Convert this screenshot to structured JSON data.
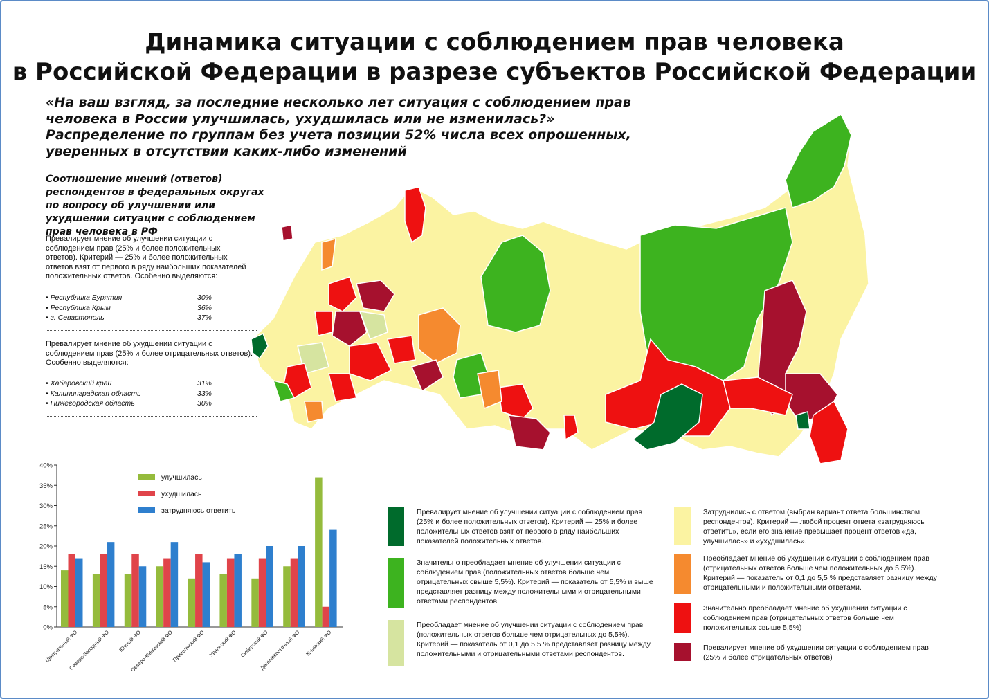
{
  "title_line1": "Динамика ситуации с соблюдением прав человека",
  "title_line2": "в Российской Федерации в разрезе субъектов Российской Федерации",
  "subtitle": "«На ваш взгляд, за последние несколько лет ситуация с соблюдением прав человека в России улучшилась, ухудшилась или не изменилась?» Распределение по группам без учета позиции 52% числа всех опрошенных, уверенных в отсутствии каких-либо изменений",
  "left_panel": {
    "heading": "Соотношение мнений (ответов) респондентов в федеральных округах по вопросу об улучшении или ухудшении ситуации с соблюдением прав человека в РФ",
    "improve_text": "Превалирует мнение об улучшении ситуации с соблюдением прав (25% и более положительных ответов). Критерий — 25% и более положительных ответов взят от первого в ряду наибольших показателей положительных ответов. Особенно выделяются:",
    "improve_highlights": [
      {
        "name": "• Республика Бурятия",
        "value": "30%"
      },
      {
        "name": "• Республика Крым",
        "value": "36%"
      },
      {
        "name": "• г. Севастополь",
        "value": "37%"
      }
    ],
    "worsen_text": "Превалирует мнение об ухудшении ситуации с соблюдением прав (25% и более отрицательных ответов). Особенно выделяются:",
    "worsen_highlights": [
      {
        "name": "• Хабаровский край",
        "value": "31%"
      },
      {
        "name": "• Калининградская область",
        "value": "33%"
      },
      {
        "name": "• Нижегородская область",
        "value": "30%"
      }
    ]
  },
  "colors": {
    "dark_green": "#006b2c",
    "green": "#3db31f",
    "light_green": "#d6e4a0",
    "pale_yellow": "#fbf3a2",
    "orange": "#f58a2f",
    "red": "#ee1111",
    "dark_red": "#a6112e",
    "improved": "#95bb3c",
    "worsened": "#e0444a",
    "undecided": "#2e7fce"
  },
  "legend": [
    {
      "color_key": "dark_green",
      "text": "Превалирует мнение об улучшении ситуации с соблюдением прав (25% и более положительных ответов). Критерий — 25% и более положительных ответов взят от первого в ряду наибольших показателей положительных ответов."
    },
    {
      "color_key": "green",
      "text": "Значительно преобладает мнение об улучшении ситуации с соблюдением прав (положительных ответов больше чем отрицательных свыше 5,5%). Критерий — показатель от 5,5% и выше представляет разницу между положительными и отрицательными ответами респондентов."
    },
    {
      "color_key": "light_green",
      "text": "Преобладает мнение об улучшении ситуации с соблюдением прав (положительных ответов больше чем отрицательных до 5,5%). Критерий — показатель от 0,1 до 5,5 % представляет разницу между положительными и отрицательными ответами респондентов."
    },
    {
      "color_key": "pale_yellow",
      "text": "Затруднились с ответом (выбран вариант ответа большинством респондентов). Критерий — любой процент ответа «затрудняюсь ответить», если его значение превышает процент ответов «да, улучшилась» и «ухудшилась»."
    },
    {
      "color_key": "orange",
      "text": "Преобладает мнение об ухудшении ситуации с соблюдением прав (отрицательных ответов больше чем положительных до 5,5%). Критерий — показатель от 0,1 до 5,5 % представляет разницу между отрицательными и положительными ответами."
    },
    {
      "color_key": "red",
      "text": "Значительно преобладает мнение об ухудшении ситуации с соблюдением прав (отрицательных ответов больше чем положительных свыше 5,5%)"
    },
    {
      "color_key": "dark_red",
      "text": "Превалирует мнение об ухудшении ситуации с соблюдением прав (25% и более отрицательных ответов)"
    }
  ],
  "chart_data": {
    "type": "bar",
    "categories": [
      "Центральный ФО",
      "Северо-Западный ФО",
      "Южный ФО",
      "Северо-Кавказский ФО",
      "Приволжский ФО",
      "Уральский ФО",
      "Сибирский ФО",
      "Дальневосточный ФО",
      "Крымский ФО"
    ],
    "series": [
      {
        "name": "улучшилась",
        "color_key": "improved",
        "values": [
          14,
          13,
          13,
          15,
          12,
          13,
          12,
          15,
          37
        ]
      },
      {
        "name": "ухудшилась",
        "color_key": "worsened",
        "values": [
          18,
          18,
          18,
          17,
          18,
          17,
          17,
          17,
          5
        ]
      },
      {
        "name": "затрудняюсь ответить",
        "color_key": "undecided",
        "values": [
          17,
          21,
          15,
          21,
          16,
          18,
          20,
          20,
          24
        ]
      }
    ],
    "y_ticks": [
      "0%",
      "5%",
      "10%",
      "15%",
      "20%",
      "25%",
      "30%",
      "35%",
      "40%"
    ],
    "ylim": [
      0,
      40
    ],
    "grid": false,
    "legend_position": "top-left inside plot"
  }
}
